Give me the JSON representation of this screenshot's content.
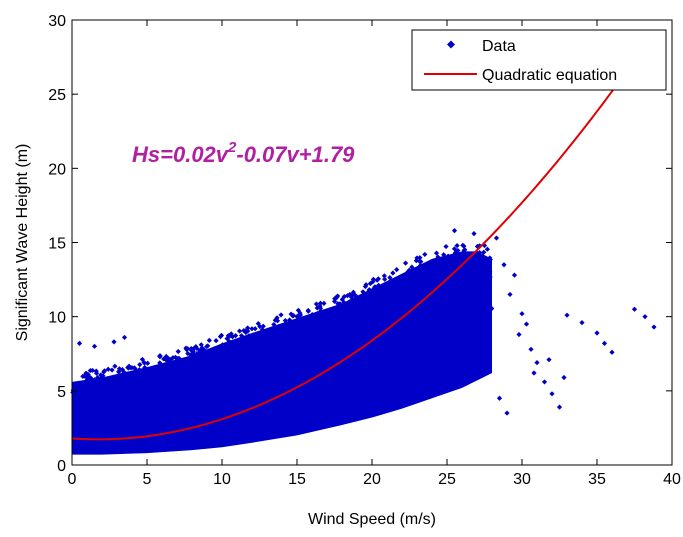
{
  "chart_data": {
    "type": "scatter",
    "title": "",
    "xlabel": "Wind Speed (m/s)",
    "ylabel": "Significant Wave Height (m)",
    "xlim": [
      0,
      40
    ],
    "ylim": [
      0,
      30
    ],
    "xticks": [
      0,
      5,
      10,
      15,
      20,
      25,
      30,
      35,
      40
    ],
    "yticks": [
      0,
      5,
      10,
      15,
      20,
      25,
      30
    ],
    "grid": false,
    "legend": {
      "placement": "top-right",
      "entries": [
        {
          "label": "Data",
          "marker": "dot",
          "color": "#0000c8"
        },
        {
          "label": "Quadratic equation",
          "marker": "line",
          "color": "#e00000"
        }
      ]
    },
    "annotation": {
      "prefix": "Hs=0.02v",
      "superscript": "2",
      "suffix": "-0.07v+1.79",
      "color": "#b020a0"
    },
    "series": [
      {
        "name": "Data",
        "kind": "scatter",
        "color": "#0000c8",
        "dense_envelope": {
          "x": [
            0,
            2,
            5,
            8,
            10,
            12,
            15,
            18,
            20,
            22,
            24,
            26,
            27,
            28
          ],
          "y_low": [
            0.5,
            0.5,
            0.6,
            0.8,
            1.0,
            1.3,
            1.8,
            2.5,
            3.0,
            3.6,
            4.3,
            5.0,
            5.5,
            6.0
          ],
          "y_high": [
            6.2,
            6.5,
            7.2,
            8.0,
            8.8,
            9.5,
            10.5,
            11.5,
            12.5,
            13.5,
            14.5,
            15.0,
            15.0,
            14.5
          ]
        },
        "outliers": {
          "x": [
            0.5,
            1.5,
            3.5,
            2.8,
            25.5,
            26.8,
            27.5,
            28.3,
            28.8,
            29.2,
            29.5,
            30.0,
            30.3,
            30.6,
            31.0,
            31.5,
            32.0,
            32.5,
            29.8,
            30.8,
            28.5,
            29.0,
            33.0,
            34.0,
            35.0,
            35.5,
            36.0,
            37.5,
            38.2,
            38.8,
            31.8,
            32.8
          ],
          "y": [
            8.2,
            8.0,
            8.6,
            8.3,
            15.8,
            15.6,
            14.8,
            15.3,
            13.5,
            11.5,
            12.8,
            10.2,
            9.5,
            7.8,
            6.9,
            5.6,
            4.8,
            3.9,
            8.8,
            6.2,
            4.5,
            3.5,
            10.1,
            9.6,
            8.9,
            8.2,
            7.6,
            10.5,
            10.0,
            9.3,
            7.1,
            5.9
          ]
        }
      },
      {
        "name": "Quadratic equation",
        "kind": "line",
        "color": "#e00000",
        "equation": {
          "a": 0.02,
          "b": -0.07,
          "c": 1.79
        },
        "x_range": [
          0,
          38.5
        ]
      }
    ]
  }
}
